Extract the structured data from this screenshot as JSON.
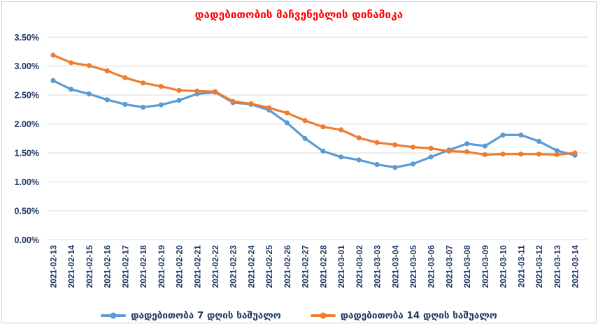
{
  "chart_data": {
    "type": "line",
    "title": "დადებითობის მაჩვენებლის დინამიკა",
    "title_color": "#FF0000",
    "axis_label_color": "#1F3864",
    "grid_color": "#D9D9D9",
    "grid": "horizontal",
    "legend_position": "bottom",
    "ylim": [
      0,
      3.5
    ],
    "yticks": [
      {
        "value": 0.0,
        "label": "0.00%"
      },
      {
        "value": 0.5,
        "label": "0.50%"
      },
      {
        "value": 1.0,
        "label": "1.00%"
      },
      {
        "value": 1.5,
        "label": "1.50%"
      },
      {
        "value": 2.0,
        "label": "2.00%"
      },
      {
        "value": 2.5,
        "label": "2.50%"
      },
      {
        "value": 3.0,
        "label": "3.00%"
      },
      {
        "value": 3.5,
        "label": "3.50%"
      }
    ],
    "x": [
      "2021-02-13",
      "2021-02-14",
      "2021-02-15",
      "2021-02-16",
      "2021-02-17",
      "2021-02-18",
      "2021-02-19",
      "2021-02-20",
      "2021-02-21",
      "2021-02-22",
      "2021-02-23",
      "2021-02-24",
      "2021-02-25",
      "2021-02-26",
      "2021-02-27",
      "2021-02-28",
      "2021-03-01",
      "2021-03-02",
      "2021-03-03",
      "2021-03-04",
      "2021-03-05",
      "2021-03-06",
      "2021-03-07",
      "2021-03-08",
      "2021-03-09",
      "2021-03-10",
      "2021-03-11",
      "2021-03-12",
      "2021-03-13",
      "2021-03-14"
    ],
    "series": [
      {
        "name": "დადებითობა 7 დღის საშუალო",
        "color": "#5B9BD5",
        "values": [
          2.75,
          2.6,
          2.52,
          2.42,
          2.34,
          2.29,
          2.33,
          2.41,
          2.52,
          2.55,
          2.37,
          2.34,
          2.24,
          2.02,
          1.75,
          1.53,
          1.43,
          1.38,
          1.3,
          1.25,
          1.31,
          1.43,
          1.55,
          1.66,
          1.62,
          1.81,
          1.81,
          1.7,
          1.54,
          1.46
        ]
      },
      {
        "name": "დადებითობა 14 დღის საშუალო",
        "color": "#ED7D31",
        "values": [
          3.19,
          3.06,
          3.01,
          2.92,
          2.8,
          2.71,
          2.65,
          2.58,
          2.57,
          2.56,
          2.39,
          2.35,
          2.28,
          2.19,
          2.06,
          1.95,
          1.9,
          1.76,
          1.68,
          1.64,
          1.6,
          1.58,
          1.53,
          1.52,
          1.47,
          1.48,
          1.48,
          1.48,
          1.47,
          1.5
        ]
      }
    ]
  }
}
